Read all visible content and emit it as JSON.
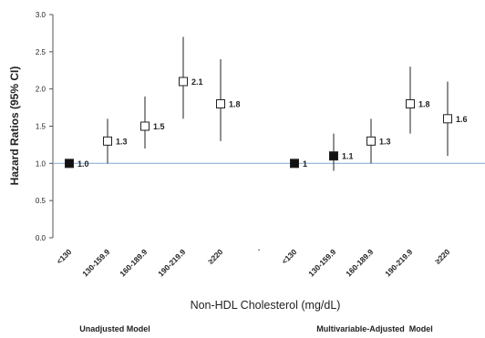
{
  "chart_data": {
    "type": "scatter",
    "title": "",
    "xlabel": "Non-HDL Cholesterol (mg/dL)",
    "ylabel": "Hazard Ratios (95% CI)",
    "ylim": [
      0,
      3.0
    ],
    "yticks": [
      "0.0",
      "0.5",
      "1.0",
      "1.5",
      "2.0",
      "2.5",
      "3.0"
    ],
    "reference_line": {
      "y": 1.0,
      "color": "#8fb3d9"
    },
    "separator": ".",
    "grid": false,
    "groups": [
      {
        "name": "Unadjusted Model",
        "points": [
          {
            "category": "<130",
            "hr": 1.0,
            "lo": 1.0,
            "hi": 1.0,
            "label": "1.0",
            "reference": true
          },
          {
            "category": "130-159.9",
            "hr": 1.3,
            "lo": 1.0,
            "hi": 1.6,
            "label": "1.3",
            "reference": false
          },
          {
            "category": "160-189.9",
            "hr": 1.5,
            "lo": 1.2,
            "hi": 1.9,
            "label": "1.5",
            "reference": false
          },
          {
            "category": "190-219.9",
            "hr": 2.1,
            "lo": 1.6,
            "hi": 2.7,
            "label": "2.1",
            "reference": false
          },
          {
            "category": "≥220",
            "hr": 1.8,
            "lo": 1.3,
            "hi": 2.4,
            "label": "1.8",
            "reference": false
          }
        ]
      },
      {
        "name": "Multivariable-Adjusted  Model",
        "points": [
          {
            "category": "<130",
            "hr": 1.0,
            "lo": 1.0,
            "hi": 1.0,
            "label": "1",
            "reference": true
          },
          {
            "category": "130-159.9",
            "hr": 1.1,
            "lo": 0.9,
            "hi": 1.4,
            "label": "1.1",
            "reference": true
          },
          {
            "category": "160-189.9",
            "hr": 1.3,
            "lo": 1.0,
            "hi": 1.6,
            "label": "1.3",
            "reference": false
          },
          {
            "category": "190-219.9",
            "hr": 1.8,
            "lo": 1.4,
            "hi": 2.3,
            "label": "1.8",
            "reference": false
          },
          {
            "category": "≥220",
            "hr": 1.6,
            "lo": 1.1,
            "hi": 2.1,
            "label": "1.6",
            "reference": false
          }
        ]
      }
    ]
  }
}
